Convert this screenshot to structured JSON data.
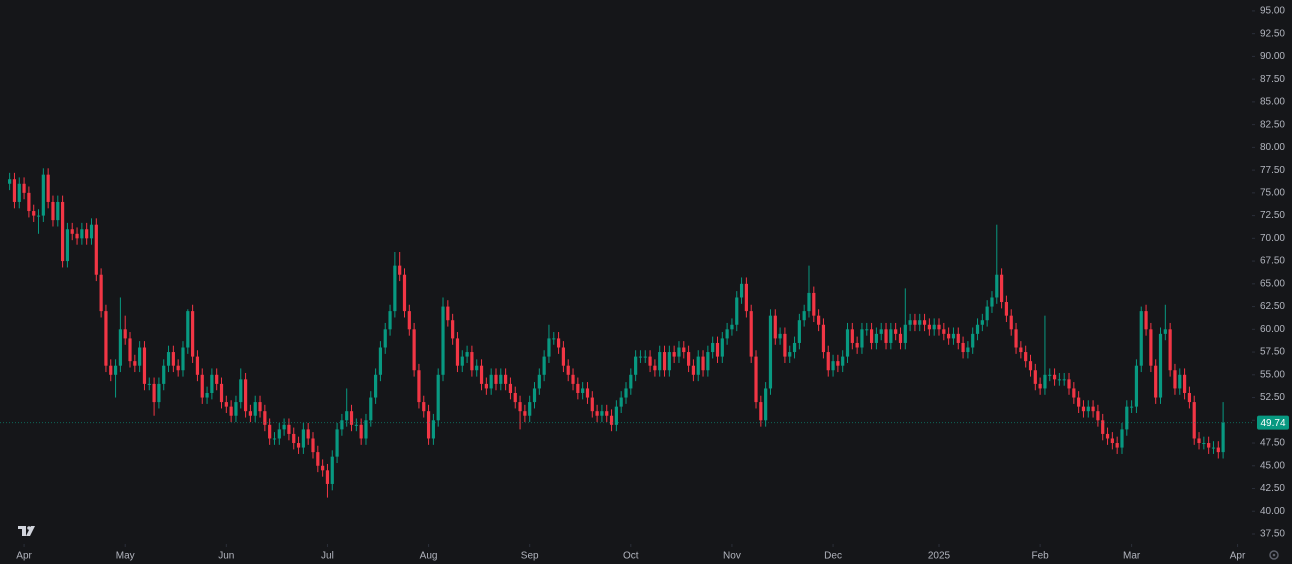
{
  "chart_data": {
    "type": "candlestick",
    "up_color": "#089981",
    "down_color": "#f23645",
    "xlim": [
      -2,
      258
    ],
    "xticks": [
      {
        "value": 3,
        "label": "Apr"
      },
      {
        "value": 24,
        "label": "May"
      },
      {
        "value": 45,
        "label": "Jun"
      },
      {
        "value": 66,
        "label": "Jul"
      },
      {
        "value": 87,
        "label": "Aug"
      },
      {
        "value": 108,
        "label": "Sep"
      },
      {
        "value": 129,
        "label": "Oct"
      },
      {
        "value": 150,
        "label": "Nov"
      },
      {
        "value": 171,
        "label": "Dec"
      },
      {
        "value": 193,
        "label": "2025"
      },
      {
        "value": 214,
        "label": "Feb"
      },
      {
        "value": 233,
        "label": "Mar"
      },
      {
        "value": 255,
        "label": "Apr"
      }
    ],
    "ylim": [
      36.4,
      96.2
    ],
    "yticks": [
      {
        "value": 37.5,
        "label": "37.50"
      },
      {
        "value": 40,
        "label": "40.00"
      },
      {
        "value": 42.5,
        "label": "42.50"
      },
      {
        "value": 45,
        "label": "45.00"
      },
      {
        "value": 47.5,
        "label": "47.50"
      },
      {
        "value": 50,
        "label": "50.00"
      },
      {
        "value": 52.5,
        "label": "52.50"
      },
      {
        "value": 55,
        "label": "55.00"
      },
      {
        "value": 57.5,
        "label": "57.50"
      },
      {
        "value": 60,
        "label": "60.00"
      },
      {
        "value": 62.5,
        "label": "62.50"
      },
      {
        "value": 65,
        "label": "65.00"
      },
      {
        "value": 67.5,
        "label": "67.50"
      },
      {
        "value": 70,
        "label": "70.00"
      },
      {
        "value": 72.5,
        "label": "72.50"
      },
      {
        "value": 75,
        "label": "75.00"
      },
      {
        "value": 77.5,
        "label": "77.50"
      },
      {
        "value": 80,
        "label": "80.00"
      },
      {
        "value": 82.5,
        "label": "82.50"
      },
      {
        "value": 85,
        "label": "85.00"
      },
      {
        "value": 87.5,
        "label": "87.50"
      },
      {
        "value": 90,
        "label": "90.00"
      },
      {
        "value": 92.5,
        "label": "92.50"
      },
      {
        "value": 95,
        "label": "95.00"
      }
    ],
    "open": [
      76,
      76.5,
      74,
      76,
      75,
      73,
      72.5,
      72.5,
      77,
      74,
      72,
      74,
      67.5,
      71,
      70.5,
      70,
      71,
      70,
      71.5,
      66,
      62,
      56,
      55,
      56,
      60,
      59,
      56.5,
      56,
      58,
      54,
      54,
      52,
      54,
      56,
      57.5,
      56,
      55.5,
      58,
      62,
      57,
      55,
      52.5,
      53,
      55,
      54,
      52,
      51.5,
      50.5,
      52,
      54.5,
      51,
      50.5,
      52,
      51,
      49.5,
      48,
      48,
      49,
      49.5,
      48.5,
      47.5,
      47,
      49,
      48,
      46.5,
      45,
      44.5,
      43,
      46,
      49,
      50,
      51,
      49.5,
      49.5,
      48,
      50,
      52.5,
      55,
      58,
      60,
      62,
      67,
      66,
      62,
      60,
      55.5,
      52,
      51,
      48,
      50,
      55,
      62.5,
      61,
      59,
      56,
      57,
      57.5,
      55.5,
      56,
      54,
      53.5,
      55,
      54,
      55,
      54,
      53,
      52,
      51,
      50.5,
      52,
      53.5,
      55,
      57,
      59,
      59,
      58,
      56,
      55,
      54,
      53,
      53.5,
      52.5,
      51,
      50.5,
      51,
      50.5,
      49.5,
      51.5,
      52.5,
      53.5,
      55,
      57,
      57,
      57,
      56,
      55.5,
      57.5,
      55.5,
      57.5,
      57,
      58,
      57.5,
      56,
      55,
      57,
      55.5,
      57.5,
      58.5,
      57,
      59,
      60,
      60.5,
      63.5,
      65,
      62,
      57,
      52,
      50,
      53.5,
      61.5,
      59,
      59.5,
      57,
      57.5,
      58.5,
      61,
      62,
      64,
      61.5,
      60.5,
      57.5,
      55.5,
      56.5,
      56,
      57,
      60,
      58.5,
      58,
      60,
      60,
      58.5,
      59.5,
      60,
      58.5,
      60,
      59.5,
      58.5,
      60.5,
      61,
      60.5,
      61,
      60.5,
      60,
      60.5,
      60,
      59.5,
      59,
      59.5,
      58.5,
      57.5,
      58,
      59.5,
      60.5,
      61,
      62.5,
      63.5,
      66,
      63,
      61.5,
      60,
      58,
      57.5,
      56.5,
      55.5,
      54,
      53.5,
      55,
      55,
      54.5,
      54.5,
      54.5,
      53.5,
      52.5,
      51.5,
      51,
      51.5,
      51,
      50,
      48.5,
      48,
      47.5,
      47,
      49,
      51.5,
      51.5,
      56,
      62,
      60,
      56,
      52.5,
      59.5,
      60,
      55.5,
      53.5,
      55,
      53,
      52,
      48,
      47.5,
      47.5,
      47,
      47,
      46.5
    ],
    "high": [
      77.2,
      77.2,
      76.7,
      76.7,
      75.7,
      73.7,
      73.2,
      77.7,
      77.7,
      74.7,
      74.7,
      74.7,
      71.7,
      71.7,
      71.2,
      71.7,
      71.7,
      72.2,
      72.2,
      66.7,
      62.7,
      56.7,
      56.7,
      63.5,
      61.5,
      59.7,
      57.2,
      58.7,
      58.7,
      54.7,
      54.7,
      54.7,
      56.7,
      58.2,
      58.2,
      56.7,
      58.7,
      62.2,
      62.7,
      57.7,
      55.7,
      53.7,
      55.7,
      55.7,
      54.7,
      52.7,
      52.2,
      52.7,
      55.7,
      55.2,
      51.7,
      52.7,
      52.7,
      51.7,
      50.2,
      48.7,
      49.7,
      50.2,
      50.2,
      49.2,
      48.2,
      49.7,
      49.7,
      48.7,
      47.2,
      45.7,
      45.2,
      46.7,
      49.7,
      50.7,
      53.5,
      51.7,
      50.2,
      50.2,
      50.7,
      53.2,
      55.7,
      58.7,
      60.7,
      62.7,
      68.5,
      68.5,
      66.7,
      62.7,
      60.7,
      56.2,
      52.7,
      51.7,
      50.7,
      55.7,
      63.5,
      63.2,
      61.7,
      59.7,
      57.7,
      58.2,
      58.2,
      56.7,
      56.7,
      54.7,
      55.7,
      55.7,
      55.7,
      55.7,
      54.7,
      53.7,
      52.7,
      51.7,
      52.7,
      54.2,
      55.7,
      57.7,
      60.5,
      59.7,
      59.7,
      58.7,
      56.7,
      55.7,
      54.7,
      54.2,
      54.2,
      53.2,
      51.7,
      51.7,
      51.7,
      51.2,
      52.2,
      53.2,
      54.2,
      55.7,
      57.7,
      57.7,
      57.7,
      57.7,
      56.7,
      58.2,
      58.2,
      58.2,
      58.2,
      58.7,
      58.7,
      58.2,
      56.7,
      57.7,
      57.7,
      58.2,
      59.2,
      59.2,
      59.7,
      60.7,
      61.2,
      64.2,
      65.7,
      65.7,
      62.7,
      57.7,
      52.7,
      54.2,
      62.2,
      62.2,
      60.2,
      60.2,
      58.2,
      59.2,
      61.7,
      62.7,
      67,
      64.7,
      62.2,
      61.2,
      58.2,
      57.2,
      57.2,
      57.7,
      60.7,
      60.7,
      59.2,
      60.7,
      60.7,
      60.7,
      60.2,
      60.7,
      60.7,
      60.7,
      60.7,
      60.2,
      64.5,
      61.7,
      61.7,
      61.7,
      61.7,
      61.2,
      61.2,
      61.2,
      60.7,
      60.2,
      60.2,
      60.2,
      59.2,
      58.7,
      60.2,
      61.2,
      61.7,
      63.2,
      64.2,
      71.5,
      66.7,
      63.7,
      62.2,
      60.7,
      58.7,
      58.2,
      57.2,
      56.2,
      54.7,
      61.5,
      55.7,
      55.7,
      55.2,
      55.2,
      55.2,
      54.2,
      53.2,
      52.2,
      52.2,
      52.2,
      51.7,
      50.7,
      49.2,
      48.7,
      48.2,
      49.7,
      52.2,
      52.2,
      56.7,
      62.5,
      62.7,
      60.7,
      56.7,
      60.2,
      62.7,
      60.7,
      56.2,
      55.7,
      55.7,
      53.7,
      52.7,
      48.7,
      48.2,
      48.2,
      47.7,
      47.7,
      52
    ],
    "low": [
      75.3,
      73.3,
      73.3,
      74.3,
      72.3,
      71.8,
      70.5,
      71.8,
      73.3,
      71.3,
      71.3,
      66.8,
      66.8,
      69.8,
      69.3,
      69.3,
      69.3,
      69.3,
      65.3,
      61.3,
      55.3,
      54.3,
      52.5,
      55.3,
      58.3,
      55.8,
      55.3,
      55.3,
      53.3,
      53.3,
      50.5,
      51.3,
      53.3,
      55.3,
      55.3,
      54.8,
      54.8,
      57.3,
      56.3,
      54.3,
      51.8,
      51.8,
      52.3,
      53.3,
      51.3,
      50.8,
      49.8,
      49.8,
      51.3,
      50.3,
      49.8,
      49.8,
      50.3,
      48.8,
      47.3,
      47.3,
      47.3,
      48.3,
      47.8,
      46.8,
      46.3,
      46.3,
      47.3,
      45.8,
      44.3,
      43.8,
      41.5,
      42.3,
      45.3,
      48.3,
      49.3,
      48.8,
      48.8,
      47.3,
      47.3,
      49.3,
      51.8,
      54.3,
      57.3,
      59.3,
      61.3,
      65.3,
      61.3,
      59.3,
      54.8,
      51.3,
      50.3,
      47.3,
      47.3,
      49.3,
      54.3,
      60.3,
      58.3,
      55.3,
      55.3,
      56.3,
      54.8,
      54.8,
      53.3,
      52.8,
      52.8,
      53.3,
      53.3,
      53.3,
      52.3,
      51.3,
      49,
      49.8,
      49.8,
      51.3,
      52.8,
      54.3,
      56.3,
      58.3,
      57.3,
      55.3,
      54.3,
      53.3,
      52.3,
      52.3,
      51.8,
      50.3,
      49.8,
      49.8,
      49.8,
      48.8,
      48.8,
      50.8,
      51.8,
      52.8,
      54.3,
      56.3,
      56.3,
      55.3,
      54.8,
      54.8,
      54.8,
      54.8,
      56.3,
      56.3,
      56.8,
      55.3,
      54.3,
      54.3,
      54.8,
      54.8,
      56.8,
      56.3,
      56.3,
      58.3,
      59.3,
      59.8,
      62.8,
      61.3,
      56.3,
      51.3,
      49.3,
      49.3,
      52.8,
      58.3,
      58.3,
      56.3,
      56.3,
      56.8,
      57.8,
      60.3,
      61.3,
      60.8,
      59.8,
      56.8,
      54.8,
      54.8,
      55.3,
      55.3,
      56.3,
      57.8,
      57.3,
      57.3,
      59.3,
      57.8,
      57.8,
      58.8,
      57.8,
      57.8,
      58.8,
      57.8,
      57.8,
      59.8,
      59.8,
      59.8,
      59.8,
      59.3,
      59.3,
      59.3,
      58.8,
      58.3,
      58.3,
      57.8,
      56.8,
      56.8,
      57.3,
      58.8,
      59.8,
      60.3,
      61.8,
      62.8,
      62.3,
      60.8,
      59.3,
      57.3,
      56.8,
      55.8,
      54.8,
      53.3,
      52.8,
      52.8,
      54.3,
      53.8,
      53.8,
      53.8,
      52.8,
      51.8,
      50.8,
      50.3,
      50.3,
      50.3,
      49.3,
      47.8,
      47.3,
      46.8,
      46.3,
      46.3,
      48.3,
      50.8,
      50.8,
      55.3,
      59.3,
      55.3,
      51.8,
      51.8,
      58.8,
      54.8,
      52.8,
      52.8,
      52.3,
      51.3,
      47.3,
      46.8,
      46.8,
      46.3,
      46.3,
      45.8,
      45.8
    ],
    "close": [
      76.5,
      74,
      76,
      75,
      73,
      72.5,
      72.5,
      77,
      74,
      72,
      74,
      67.5,
      71,
      70.5,
      70,
      71,
      70,
      71.5,
      66,
      62,
      56,
      55,
      56,
      60,
      59,
      56.5,
      56,
      58,
      54,
      54,
      52,
      54,
      56,
      57.5,
      56,
      55.5,
      58,
      62,
      57,
      55,
      52.5,
      53,
      55,
      54,
      52,
      51.5,
      50.5,
      52,
      54.5,
      51,
      50.5,
      52,
      51,
      49.5,
      48,
      48,
      49,
      49.5,
      48.5,
      47.5,
      47,
      49,
      48,
      46.5,
      45,
      44.5,
      43,
      46,
      49,
      50,
      51,
      49.5,
      49.5,
      48,
      50,
      52.5,
      55,
      58,
      60,
      62,
      67,
      66,
      62,
      60,
      55.5,
      52,
      51,
      48,
      50,
      55,
      62.5,
      61,
      59,
      56,
      57,
      57.5,
      55.5,
      56,
      54,
      53.5,
      55,
      54,
      55,
      54,
      53,
      52,
      51,
      50.5,
      52,
      53.5,
      55,
      57,
      59,
      59,
      58,
      56,
      55,
      54,
      53,
      53.5,
      52.5,
      51,
      50.5,
      51,
      50.5,
      49.5,
      51.5,
      52.5,
      53.5,
      55,
      57,
      57,
      57,
      56,
      55.5,
      57.5,
      55.5,
      57.5,
      57,
      58,
      57.5,
      56,
      55,
      57,
      55.5,
      57.5,
      58.5,
      57,
      59,
      60,
      60.5,
      63.5,
      65,
      62,
      57,
      52,
      50,
      53.5,
      61.5,
      59,
      59.5,
      57,
      57.5,
      58.5,
      61,
      62,
      64,
      61.5,
      60.5,
      57.5,
      55.5,
      56.5,
      56,
      57,
      60,
      58.5,
      58,
      60,
      60,
      58.5,
      59.5,
      60,
      58.5,
      60,
      59.5,
      58.5,
      60.5,
      61,
      60.5,
      61,
      60.5,
      60,
      60.5,
      60,
      59.5,
      59,
      59.5,
      58.5,
      57.5,
      58,
      59.5,
      60.5,
      61,
      62.5,
      63.5,
      66,
      63,
      61.5,
      60,
      58,
      57.5,
      56.5,
      55.5,
      54,
      53.5,
      55,
      55,
      54.5,
      54.5,
      54.5,
      53.5,
      52.5,
      51.5,
      51,
      51.5,
      51,
      50,
      48.5,
      48,
      47.5,
      47,
      49,
      51.5,
      51.5,
      56,
      62,
      60,
      56,
      52.5,
      59.5,
      60,
      55.5,
      53.5,
      55,
      53,
      52,
      48,
      47.5,
      47.5,
      47,
      47,
      46.5,
      49.74
    ]
  }
}
